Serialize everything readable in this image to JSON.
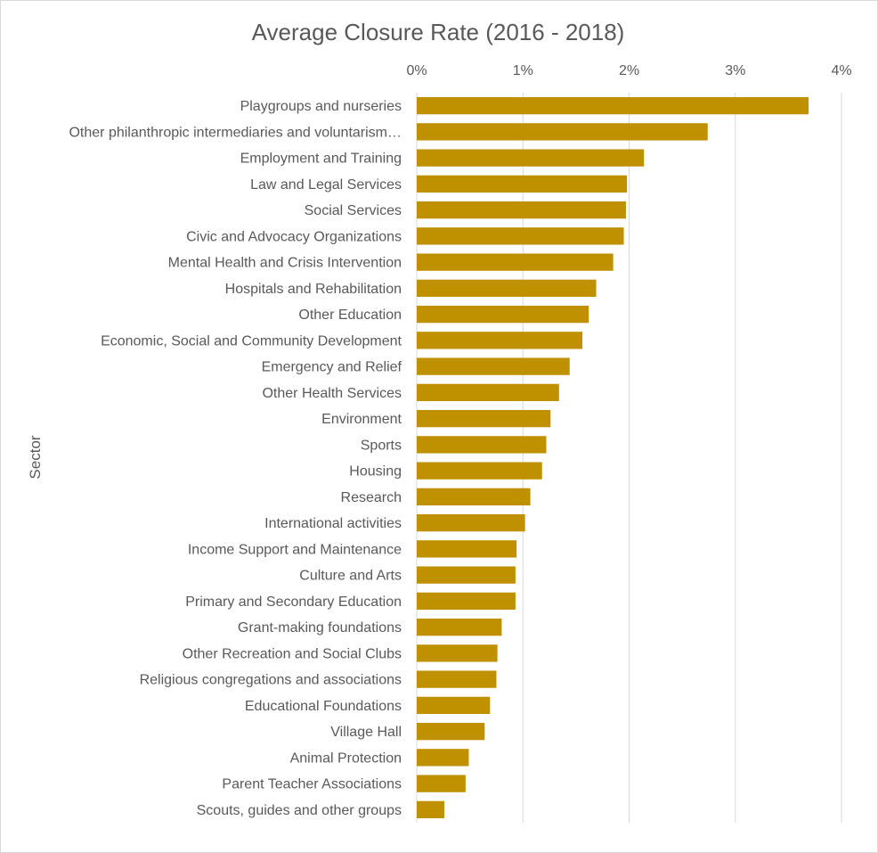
{
  "chart_data": {
    "type": "bar",
    "orientation": "horizontal",
    "title": "Average Closure Rate (2016 - 2018)",
    "ylabel": "Sector",
    "xlabel": "",
    "xlim": [
      0,
      4
    ],
    "x_ticks": [
      "0%",
      "1%",
      "2%",
      "3%",
      "4%"
    ],
    "x_axis_position": "top",
    "grid": true,
    "legend": "none",
    "bar_color": "#bf9000",
    "categories": [
      "Playgroups and nurseries",
      "Other philanthropic intermediaries and voluntarism…",
      "Employment and Training",
      "Law and Legal Services",
      "Social Services",
      "Civic and Advocacy Organizations",
      "Mental Health and Crisis Intervention",
      "Hospitals and Rehabilitation",
      "Other Education",
      "Economic, Social and Community Development",
      "Emergency and Relief",
      "Other Health Services",
      "Environment",
      "Sports",
      "Housing",
      "Research",
      "International activities",
      "Income Support and Maintenance",
      "Culture and Arts",
      "Primary and Secondary Education",
      "Grant-making foundations",
      "Other Recreation and Social Clubs",
      "Religious congregations and associations",
      "Educational Foundations",
      "Village Hall",
      "Animal Protection",
      "Parent Teacher Associations",
      "Scouts, guides and other groups"
    ],
    "values": [
      3.69,
      2.74,
      2.14,
      1.98,
      1.97,
      1.95,
      1.85,
      1.69,
      1.62,
      1.56,
      1.44,
      1.34,
      1.26,
      1.22,
      1.18,
      1.07,
      1.02,
      0.94,
      0.93,
      0.93,
      0.8,
      0.76,
      0.75,
      0.69,
      0.64,
      0.49,
      0.46,
      0.26
    ]
  }
}
